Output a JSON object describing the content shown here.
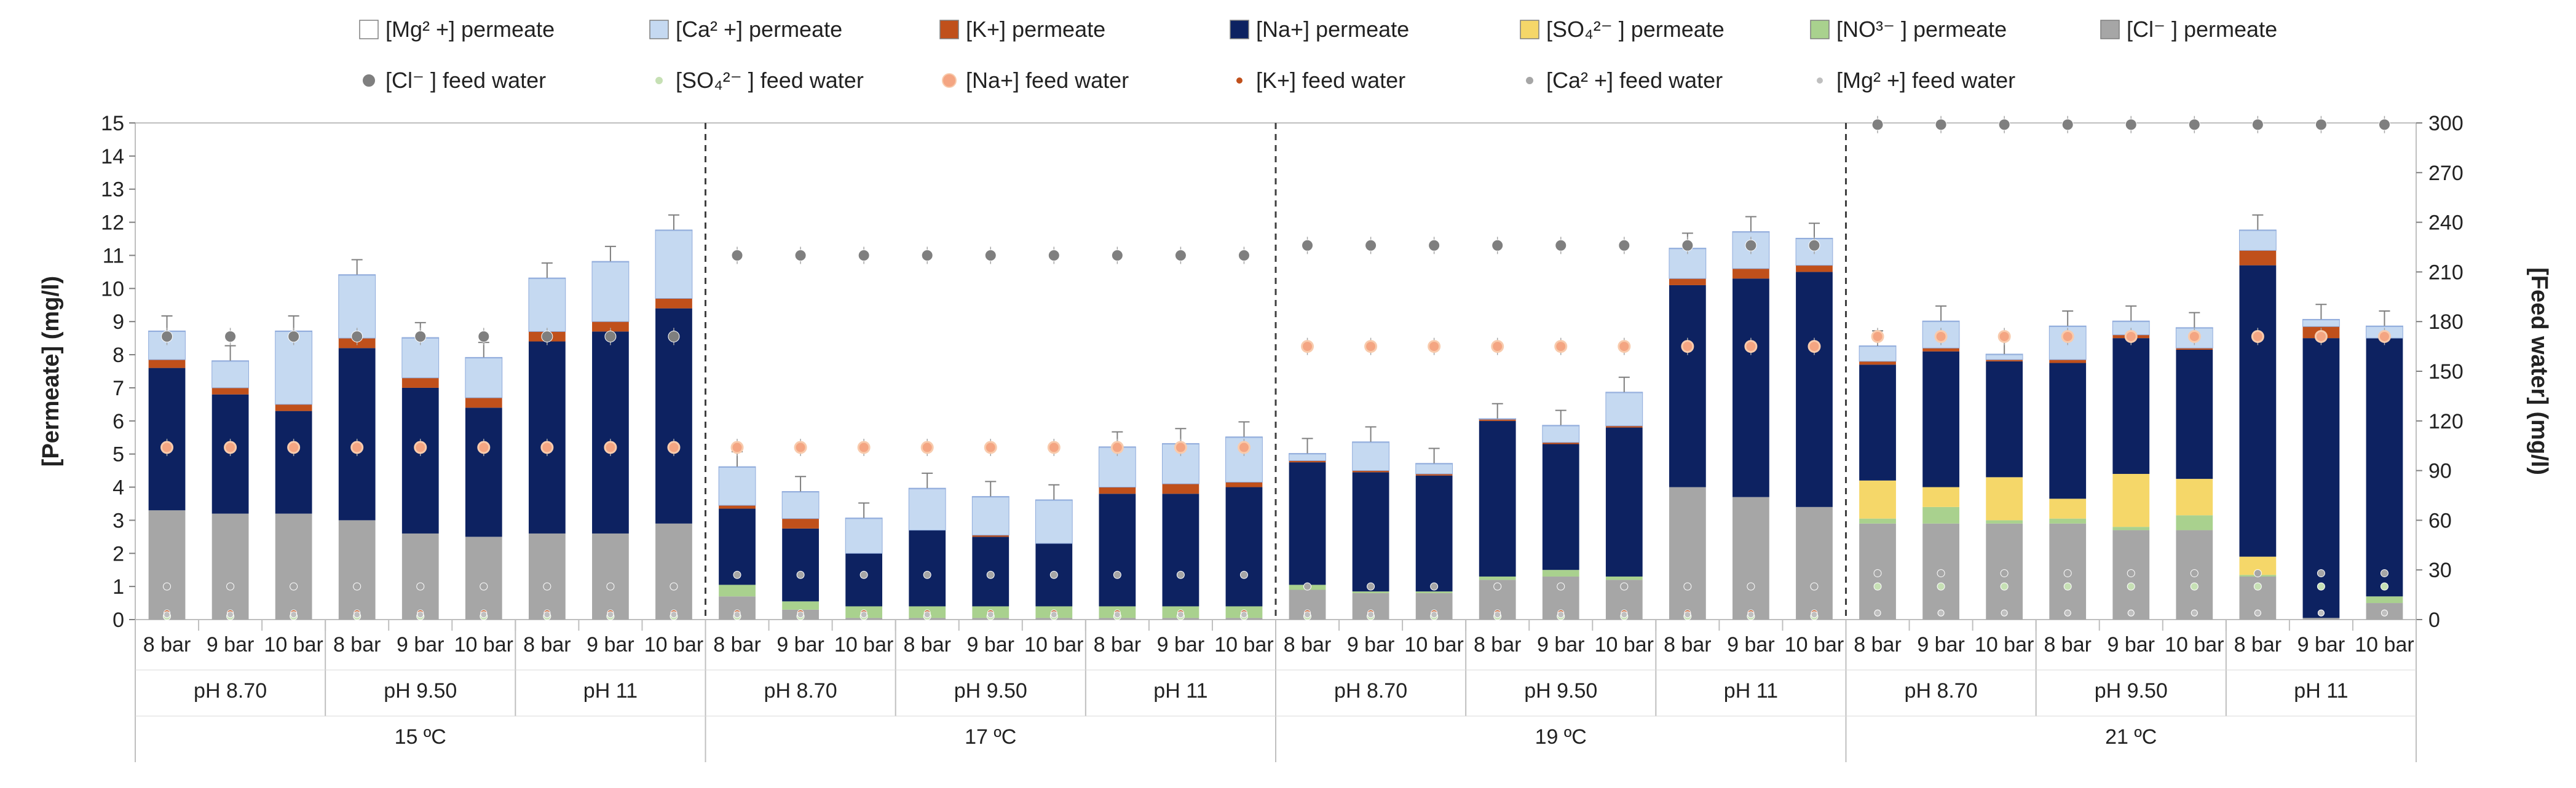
{
  "chart_data": {
    "type": "stacked-bar-with-scatter",
    "y_left": {
      "label": "[Permeate] (mg/l)",
      "min": 0,
      "max": 15,
      "step": 1,
      "ticks": [
        "0",
        "1",
        "2",
        "3",
        "4",
        "5",
        "6",
        "7",
        "8",
        "9",
        "10",
        "11",
        "12",
        "13",
        "14",
        "15"
      ]
    },
    "y_right": {
      "label": "[Feed water] (mg/l)",
      "min": 0,
      "max": 300,
      "step": 30,
      "ticks": [
        "0",
        "30",
        "60",
        "90",
        "120",
        "150",
        "180",
        "210",
        "240",
        "270",
        "300"
      ]
    },
    "pressures": [
      "8 bar",
      "9 bar",
      "10 bar"
    ],
    "ph_levels": [
      "pH 8.70",
      "pH 9.50",
      "pH 11"
    ],
    "temperatures": [
      "15 ºC",
      "17 ºC",
      "19 ºC",
      "21 ºC"
    ],
    "permeate_series": [
      {
        "name": "[Mg² +] permeate",
        "color": "#ffffff"
      },
      {
        "name": "[Ca² +] permeate",
        "color": "#c5d9f1"
      },
      {
        "name": "[K+] permeate",
        "color": "#c0501b"
      },
      {
        "name": "[Na+] permeate",
        "color": "#0d2261"
      },
      {
        "name": "[SO₄²⁻ ] permeate",
        "color": "#f5d769"
      },
      {
        "name": "[NO³⁻ ] permeate",
        "color": "#a9d18e"
      },
      {
        "name": "[Cl⁻ ] permeate",
        "color": "#a6a6a6"
      }
    ],
    "feed_series": [
      {
        "name": "[Cl⁻ ] feed water",
        "color": "#7f7f7f"
      },
      {
        "name": "[SO₄²⁻ ] feed water",
        "color": "#c6e0b4"
      },
      {
        "name": "[Na+] feed water",
        "color": "#f4a582"
      },
      {
        "name": "[K+] feed water",
        "color": "#c0501b"
      },
      {
        "name": "[Ca² +] feed water",
        "color": "#a6a6a6"
      },
      {
        "name": "[Mg² +] feed water",
        "color": "#bfbfbf"
      }
    ],
    "permeate_stack_order_bottom_to_top": [
      "Cl",
      "NO3",
      "SO4",
      "Na",
      "K",
      "Ca",
      "Mg"
    ],
    "bars": [
      {
        "temp": "15 ºC",
        "ph": "pH 8.70",
        "pressure": "8 bar",
        "Cl": 3.3,
        "NO3": 0,
        "SO4": 0,
        "Na": 4.3,
        "K": 0.25,
        "Ca": 0.85,
        "Mg": 0.02,
        "err": 0.45
      },
      {
        "temp": "15 ºC",
        "ph": "pH 8.70",
        "pressure": "9 bar",
        "Cl": 3.2,
        "NO3": 0,
        "SO4": 0,
        "Na": 3.6,
        "K": 0.2,
        "Ca": 0.8,
        "Mg": 0.02,
        "err": 0.45
      },
      {
        "temp": "15 ºC",
        "ph": "pH 8.70",
        "pressure": "10 bar",
        "Cl": 3.2,
        "NO3": 0,
        "SO4": 0,
        "Na": 3.1,
        "K": 0.2,
        "Ca": 2.2,
        "Mg": 0.02,
        "err": 0.45
      },
      {
        "temp": "15 ºC",
        "ph": "pH 9.50",
        "pressure": "8 bar",
        "Cl": 3.0,
        "NO3": 0,
        "SO4": 0,
        "Na": 5.2,
        "K": 0.3,
        "Ca": 1.9,
        "Mg": 0.02,
        "err": 0.45
      },
      {
        "temp": "15 ºC",
        "ph": "pH 9.50",
        "pressure": "9 bar",
        "Cl": 2.6,
        "NO3": 0,
        "SO4": 0,
        "Na": 4.4,
        "K": 0.3,
        "Ca": 1.2,
        "Mg": 0.02,
        "err": 0.45
      },
      {
        "temp": "15 ºC",
        "ph": "pH 9.50",
        "pressure": "10 bar",
        "Cl": 2.5,
        "NO3": 0,
        "SO4": 0,
        "Na": 3.9,
        "K": 0.3,
        "Ca": 1.2,
        "Mg": 0.02,
        "err": 0.45
      },
      {
        "temp": "15 ºC",
        "ph": "pH 11",
        "pressure": "8 bar",
        "Cl": 2.6,
        "NO3": 0,
        "SO4": 0,
        "Na": 5.8,
        "K": 0.3,
        "Ca": 1.6,
        "Mg": 0.02,
        "err": 0.45
      },
      {
        "temp": "15 ºC",
        "ph": "pH 11",
        "pressure": "9 bar",
        "Cl": 2.6,
        "NO3": 0,
        "SO4": 0,
        "Na": 6.1,
        "K": 0.3,
        "Ca": 1.8,
        "Mg": 0.02,
        "err": 0.45
      },
      {
        "temp": "15 ºC",
        "ph": "pH 11",
        "pressure": "10 bar",
        "Cl": 2.9,
        "NO3": 0,
        "SO4": 0,
        "Na": 6.5,
        "K": 0.3,
        "Ca": 2.05,
        "Mg": 0.02,
        "err": 0.45
      },
      {
        "temp": "17 ºC",
        "ph": "pH 8.70",
        "pressure": "8 bar",
        "Cl": 0.7,
        "NO3": 0.35,
        "SO4": 0,
        "Na": 2.3,
        "K": 0.1,
        "Ca": 1.15,
        "Mg": 0.02,
        "err": 0.45
      },
      {
        "temp": "17 ºC",
        "ph": "pH 8.70",
        "pressure": "9 bar",
        "Cl": 0.3,
        "NO3": 0.25,
        "SO4": 0,
        "Na": 2.2,
        "K": 0.3,
        "Ca": 0.8,
        "Mg": 0.02,
        "err": 0.45
      },
      {
        "temp": "17 ºC",
        "ph": "pH 8.70",
        "pressure": "10 bar",
        "Cl": 0.05,
        "NO3": 0.35,
        "SO4": 0,
        "Na": 1.6,
        "K": 0,
        "Ca": 1.05,
        "Mg": 0.02,
        "err": 0.45
      },
      {
        "temp": "17 ºC",
        "ph": "pH 9.50",
        "pressure": "8 bar",
        "Cl": 0.05,
        "NO3": 0.35,
        "SO4": 0,
        "Na": 2.3,
        "K": 0,
        "Ca": 1.25,
        "Mg": 0.02,
        "err": 0.45
      },
      {
        "temp": "17 ºC",
        "ph": "pH 9.50",
        "pressure": "9 bar",
        "Cl": 0.05,
        "NO3": 0.35,
        "SO4": 0,
        "Na": 2.1,
        "K": 0.05,
        "Ca": 1.15,
        "Mg": 0.02,
        "err": 0.45
      },
      {
        "temp": "17 ºC",
        "ph": "pH 9.50",
        "pressure": "10 bar",
        "Cl": 0.05,
        "NO3": 0.35,
        "SO4": 0,
        "Na": 1.9,
        "K": 0,
        "Ca": 1.3,
        "Mg": 0.02,
        "err": 0.45
      },
      {
        "temp": "17 ºC",
        "ph": "pH 11",
        "pressure": "8 bar",
        "Cl": 0.05,
        "NO3": 0.35,
        "SO4": 0,
        "Na": 3.4,
        "K": 0.2,
        "Ca": 1.2,
        "Mg": 0.02,
        "err": 0.45
      },
      {
        "temp": "17 ºC",
        "ph": "pH 11",
        "pressure": "9 bar",
        "Cl": 0.05,
        "NO3": 0.35,
        "SO4": 0,
        "Na": 3.4,
        "K": 0.3,
        "Ca": 1.2,
        "Mg": 0.02,
        "err": 0.45
      },
      {
        "temp": "17 ºC",
        "ph": "pH 11",
        "pressure": "10 bar",
        "Cl": 0.05,
        "NO3": 0.35,
        "SO4": 0,
        "Na": 3.6,
        "K": 0.15,
        "Ca": 1.35,
        "Mg": 0.02,
        "err": 0.45
      },
      {
        "temp": "19 ºC",
        "ph": "pH 8.70",
        "pressure": "8 bar",
        "Cl": 0.9,
        "NO3": 0.15,
        "SO4": 0,
        "Na": 3.7,
        "K": 0.05,
        "Ca": 0.2,
        "Mg": 0.02,
        "err": 0.45
      },
      {
        "temp": "19 ºC",
        "ph": "pH 8.70",
        "pressure": "9 bar",
        "Cl": 0.8,
        "NO3": 0.05,
        "SO4": 0,
        "Na": 3.6,
        "K": 0.05,
        "Ca": 0.85,
        "Mg": 0.02,
        "err": 0.45
      },
      {
        "temp": "19 ºC",
        "ph": "pH 8.70",
        "pressure": "10 bar",
        "Cl": 0.8,
        "NO3": 0.05,
        "SO4": 0,
        "Na": 3.5,
        "K": 0.05,
        "Ca": 0.3,
        "Mg": 0.02,
        "err": 0.45
      },
      {
        "temp": "19 ºC",
        "ph": "pH 9.50",
        "pressure": "8 bar",
        "Cl": 1.2,
        "NO3": 0.1,
        "SO4": 0,
        "Na": 4.7,
        "K": 0.05,
        "Ca": 0.0,
        "Mg": 0.02,
        "err": 0.45
      },
      {
        "temp": "19 ºC",
        "ph": "pH 9.50",
        "pressure": "9 bar",
        "Cl": 1.3,
        "NO3": 0.2,
        "SO4": 0,
        "Na": 3.8,
        "K": 0.05,
        "Ca": 0.5,
        "Mg": 0.02,
        "err": 0.45
      },
      {
        "temp": "19 ºC",
        "ph": "pH 9.50",
        "pressure": "10 bar",
        "Cl": 1.2,
        "NO3": 0.1,
        "SO4": 0,
        "Na": 4.5,
        "K": 0.05,
        "Ca": 1.0,
        "Mg": 0.02,
        "err": 0.45
      },
      {
        "temp": "19 ºC",
        "ph": "pH 11",
        "pressure": "8 bar",
        "Cl": 4.0,
        "NO3": 0,
        "SO4": 0,
        "Na": 6.1,
        "K": 0.2,
        "Ca": 0.9,
        "Mg": 0.02,
        "err": 0.45
      },
      {
        "temp": "19 ºC",
        "ph": "pH 11",
        "pressure": "9 bar",
        "Cl": 3.7,
        "NO3": 0,
        "SO4": 0,
        "Na": 6.6,
        "K": 0.3,
        "Ca": 1.1,
        "Mg": 0.02,
        "err": 0.45
      },
      {
        "temp": "19 ºC",
        "ph": "pH 11",
        "pressure": "10 bar",
        "Cl": 3.4,
        "NO3": 0,
        "SO4": 0,
        "Na": 7.1,
        "K": 0.2,
        "Ca": 0.8,
        "Mg": 0.02,
        "err": 0.45
      },
      {
        "temp": "21 ºC",
        "ph": "pH 8.70",
        "pressure": "8 bar",
        "Cl": 2.9,
        "NO3": 0.15,
        "SO4": 1.15,
        "Na": 3.5,
        "K": 0.1,
        "Ca": 0.45,
        "Mg": 0.02,
        "err": 0.45
      },
      {
        "temp": "21 ºC",
        "ph": "pH 8.70",
        "pressure": "9 bar",
        "Cl": 2.9,
        "NO3": 0.5,
        "SO4": 0.6,
        "Na": 4.1,
        "K": 0.1,
        "Ca": 0.8,
        "Mg": 0.02,
        "err": 0.45
      },
      {
        "temp": "21 ºC",
        "ph": "pH 8.70",
        "pressure": "10 bar",
        "Cl": 2.9,
        "NO3": 0.1,
        "SO4": 1.3,
        "Na": 3.5,
        "K": 0.05,
        "Ca": 0.15,
        "Mg": 0.02,
        "err": 0.45
      },
      {
        "temp": "21 ºC",
        "ph": "pH 9.50",
        "pressure": "8 bar",
        "Cl": 2.9,
        "NO3": 0.15,
        "SO4": 0.6,
        "Na": 4.1,
        "K": 0.1,
        "Ca": 1.0,
        "Mg": 0.02,
        "err": 0.45
      },
      {
        "temp": "21 ºC",
        "ph": "pH 9.50",
        "pressure": "9 bar",
        "Cl": 2.7,
        "NO3": 0.1,
        "SO4": 1.6,
        "Na": 4.1,
        "K": 0.1,
        "Ca": 0.4,
        "Mg": 0.02,
        "err": 0.45
      },
      {
        "temp": "21 ºC",
        "ph": "pH 9.50",
        "pressure": "10 bar",
        "Cl": 2.7,
        "NO3": 0.45,
        "SO4": 1.1,
        "Na": 3.9,
        "K": 0.05,
        "Ca": 0.6,
        "Mg": 0.02,
        "err": 0.45
      },
      {
        "temp": "21 ºC",
        "ph": "pH 11",
        "pressure": "8 bar",
        "Cl": 1.3,
        "NO3": 0.05,
        "SO4": 0.55,
        "Na": 8.8,
        "K": 0.45,
        "Ca": 0.6,
        "Mg": 0.02,
        "err": 0.45
      },
      {
        "temp": "21 ºC",
        "ph": "pH 11",
        "pressure": "9 bar",
        "Cl": 0.05,
        "NO3": 0,
        "SO4": 0,
        "Na": 8.45,
        "K": 0.35,
        "Ca": 0.2,
        "Mg": 0.02,
        "err": 0.45
      },
      {
        "temp": "21 ºC",
        "ph": "pH 11",
        "pressure": "10 bar",
        "Cl": 0.5,
        "NO3": 0.2,
        "SO4": 0,
        "Na": 7.8,
        "K": 0,
        "Ca": 0.35,
        "Mg": 0.02,
        "err": 0.45
      }
    ],
    "feed_water_by_temperature": [
      {
        "temp": "15 ºC",
        "Cl": 171,
        "SO4": 2,
        "Na": 104,
        "K": 4,
        "Ca": 20,
        "Mg": 3
      },
      {
        "temp": "17 ºC",
        "Cl": 220,
        "SO4": 2,
        "Na": 104,
        "K": 4,
        "Ca": 27,
        "Mg": 3
      },
      {
        "temp": "19 ºC",
        "Cl": 226,
        "SO4": 2,
        "Na": 165,
        "K": 4,
        "Ca": 20,
        "Mg": 3
      },
      {
        "temp": "21 ºC",
        "Cl": 299,
        "SO4": 20,
        "Na": 171,
        "K": 4,
        "Ca": 28,
        "Mg": 4
      }
    ],
    "feed_water_overrides": [
      {
        "index": 6,
        "Na": 104
      },
      {
        "index": 7,
        "Na": 104
      },
      {
        "index": 8,
        "Na": 104
      },
      {
        "index": 24,
        "Cl": 226
      },
      {
        "index": 25,
        "Cl": 226
      },
      {
        "index": 26,
        "Cl": 226
      }
    ]
  }
}
